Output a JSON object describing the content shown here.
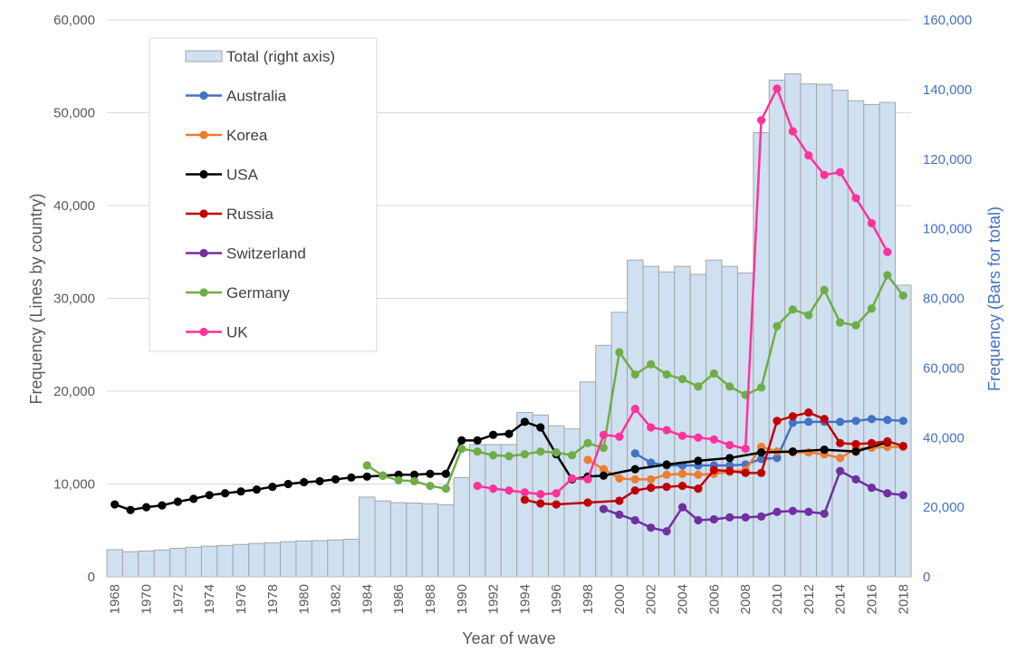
{
  "chart_data": {
    "type": "bar+line",
    "xlabel": "Year of wave",
    "ylabel_left": "Frequency (Lines by country)",
    "ylabel_right": "Frequency (Bars for total)",
    "ylim_left": [
      0,
      60000
    ],
    "ylim_right": [
      0,
      160000
    ],
    "yticks_left": [
      "0",
      "10,000",
      "20,000",
      "30,000",
      "40,000",
      "50,000",
      "60,000"
    ],
    "yticks_right": [
      "0",
      "20,000",
      "40,000",
      "60,000",
      "80,000",
      "100,000",
      "120,000",
      "140,000",
      "160,000"
    ],
    "x_range": [
      1968,
      2018
    ],
    "x_tick_labels": [
      "1968",
      "1970",
      "1972",
      "1974",
      "1976",
      "1978",
      "1980",
      "1982",
      "1984",
      "1986",
      "1988",
      "1990",
      "1992",
      "1994",
      "1996",
      "1998",
      "2000",
      "2002",
      "2004",
      "2006",
      "2008",
      "2010",
      "2012",
      "2014",
      "2016",
      "2018"
    ],
    "legend_position": "top-left",
    "grid": true,
    "bar_series": {
      "name": "Total (right axis)",
      "color": "#CFE0F1",
      "edge": "#A6A6A6",
      "x": [
        1968,
        1969,
        1970,
        1971,
        1972,
        1973,
        1974,
        1975,
        1976,
        1977,
        1978,
        1979,
        1980,
        1981,
        1982,
        1983,
        1984,
        1985,
        1986,
        1987,
        1988,
        1989,
        1990,
        1991,
        1992,
        1993,
        1994,
        1995,
        1996,
        1997,
        1998,
        1999,
        2000,
        2001,
        2002,
        2003,
        2004,
        2005,
        2006,
        2007,
        2008,
        2009,
        2010,
        2011,
        2012,
        2013,
        2014,
        2015,
        2016,
        2017,
        2018
      ],
      "values": [
        7800,
        7200,
        7400,
        7700,
        8200,
        8500,
        8800,
        9000,
        9300,
        9600,
        9800,
        10100,
        10300,
        10400,
        10600,
        10800,
        22900,
        21800,
        21300,
        21200,
        21000,
        20700,
        28500,
        38000,
        38000,
        38000,
        47200,
        46500,
        43400,
        42500,
        56000,
        66500,
        76000,
        91000,
        89200,
        87600,
        89200,
        86900,
        91000,
        89200,
        87300,
        127600,
        142700,
        144500,
        141600,
        141500,
        139800,
        136800,
        135700,
        136300,
        83800
      ]
    },
    "series": [
      {
        "name": "Australia",
        "color": "#4472C4",
        "x": [
          2001,
          2002,
          2003,
          2004,
          2005,
          2006,
          2007,
          2008,
          2009,
          2010,
          2011,
          2012,
          2013,
          2014,
          2015,
          2016,
          2017,
          2018
        ],
        "values": [
          13300,
          12300,
          12000,
          12000,
          12000,
          12000,
          12000,
          12100,
          12700,
          12800,
          16600,
          16700,
          16700,
          16700,
          16800,
          17000,
          16900,
          16800
        ]
      },
      {
        "name": "Korea",
        "color": "#ED7D31",
        "x": [
          1998,
          1999,
          2000,
          2001,
          2002,
          2003,
          2004,
          2005,
          2006,
          2007,
          2008,
          2009,
          2010,
          2011,
          2012,
          2013,
          2014,
          2015,
          2016,
          2017,
          2018
        ],
        "values": [
          12600,
          11600,
          10600,
          10500,
          10500,
          11000,
          11100,
          11000,
          11100,
          11300,
          11500,
          14000,
          13500,
          13400,
          13400,
          13200,
          12800,
          13800,
          13900,
          14000,
          14000
        ]
      },
      {
        "name": "USA",
        "color": "#000000",
        "x": [
          1968,
          1969,
          1970,
          1971,
          1972,
          1973,
          1974,
          1975,
          1976,
          1977,
          1978,
          1979,
          1980,
          1981,
          1982,
          1983,
          1984,
          1985,
          1986,
          1987,
          1988,
          1989,
          1990,
          1991,
          1992,
          1993,
          1994,
          1995,
          1996,
          1997,
          1998,
          1999,
          2001,
          2003,
          2005,
          2007,
          2009,
          2011,
          2013,
          2015,
          2017
        ],
        "values": [
          7800,
          7200,
          7500,
          7700,
          8100,
          8400,
          8800,
          9000,
          9200,
          9400,
          9700,
          10000,
          10200,
          10300,
          10500,
          10700,
          10800,
          10900,
          11000,
          11000,
          11100,
          11100,
          14700,
          14700,
          15300,
          15400,
          16700,
          16100,
          13200,
          10500,
          10800,
          10900,
          11600,
          12100,
          12500,
          12800,
          13400,
          13500,
          13700,
          13500,
          14500
        ]
      },
      {
        "name": "Russia",
        "color": "#C00000",
        "x": [
          1994,
          1995,
          1996,
          1998,
          2000,
          2001,
          2002,
          2003,
          2004,
          2005,
          2006,
          2007,
          2008,
          2009,
          2010,
          2011,
          2012,
          2013,
          2014,
          2015,
          2016,
          2017,
          2018
        ],
        "values": [
          8300,
          7900,
          7800,
          8000,
          8200,
          9300,
          9600,
          9700,
          9800,
          9500,
          11500,
          11400,
          11200,
          11200,
          16800,
          17300,
          17700,
          17000,
          14400,
          14300,
          14400,
          14600,
          14100
        ]
      },
      {
        "name": "Switzerland",
        "color": "#7030A0",
        "x": [
          1999,
          2000,
          2001,
          2002,
          2003,
          2004,
          2005,
          2006,
          2007,
          2008,
          2009,
          2010,
          2011,
          2012,
          2013,
          2014,
          2015,
          2016,
          2017,
          2018
        ],
        "values": [
          7300,
          6700,
          6100,
          5300,
          4900,
          7500,
          6100,
          6200,
          6400,
          6400,
          6500,
          7000,
          7100,
          7000,
          6800,
          11400,
          10500,
          9600,
          9000,
          8800
        ]
      },
      {
        "name": "Germany",
        "color": "#70AD47",
        "x": [
          1984,
          1985,
          1986,
          1987,
          1988,
          1989,
          1990,
          1991,
          1992,
          1993,
          1994,
          1995,
          1996,
          1997,
          1998,
          1999,
          2000,
          2001,
          2002,
          2003,
          2004,
          2005,
          2006,
          2007,
          2008,
          2009,
          2010,
          2011,
          2012,
          2013,
          2014,
          2015,
          2016,
          2017,
          2018
        ],
        "values": [
          12000,
          10900,
          10400,
          10300,
          9800,
          9500,
          13800,
          13500,
          13100,
          13000,
          13200,
          13500,
          13400,
          13100,
          14400,
          13900,
          24200,
          21800,
          22900,
          21800,
          21300,
          20500,
          21900,
          20500,
          19600,
          20400,
          27000,
          28800,
          28200,
          30900,
          27400,
          27100,
          28900,
          32500,
          30300
        ]
      },
      {
        "name": "UK",
        "color": "#FF3399",
        "x": [
          1991,
          1992,
          1993,
          1994,
          1995,
          1996,
          1997,
          1998,
          1999,
          2000,
          2001,
          2002,
          2003,
          2004,
          2005,
          2006,
          2007,
          2008,
          2009,
          2010,
          2011,
          2012,
          2013,
          2014,
          2015,
          2016,
          2017
        ],
        "values": [
          9800,
          9500,
          9300,
          9100,
          8900,
          9000,
          10600,
          10500,
          15300,
          15100,
          18100,
          16100,
          15800,
          15200,
          15000,
          14800,
          14200,
          13800,
          49200,
          52600,
          48000,
          45400,
          43300,
          43600,
          40800,
          38100,
          35000
        ]
      }
    ]
  }
}
